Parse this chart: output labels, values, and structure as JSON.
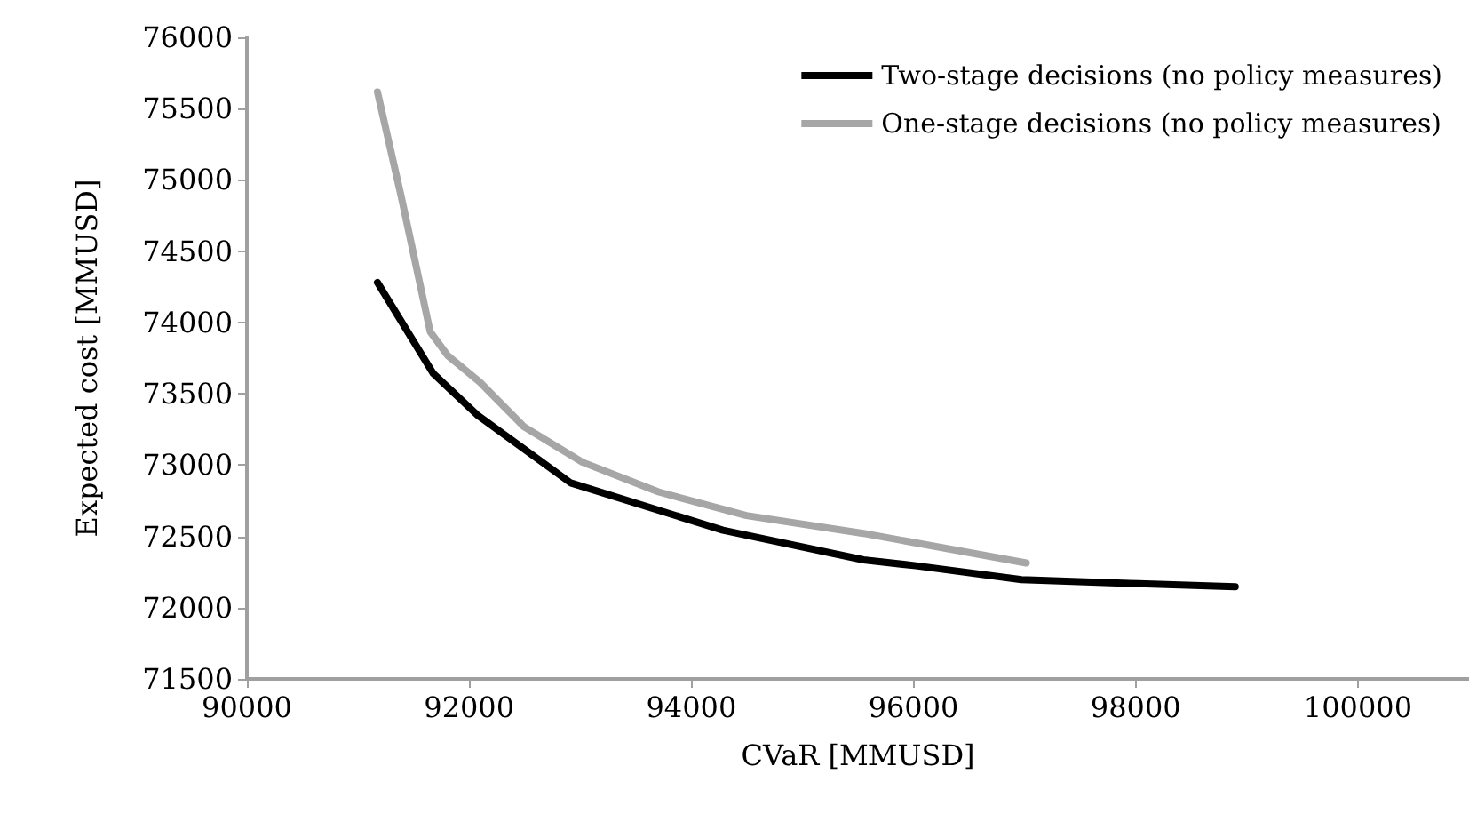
{
  "chart_data": {
    "type": "line",
    "xlabel": "CVaR [MMUSD]",
    "ylabel": "Expected cost [MMUSD]",
    "xlim": [
      90000,
      101000
    ],
    "xticks": [
      90000,
      92000,
      94000,
      96000,
      98000,
      100000
    ],
    "ylim": [
      71500,
      76000
    ],
    "yticks": [
      71500,
      72000,
      72500,
      73000,
      73500,
      74000,
      74500,
      75000,
      75500,
      76000
    ],
    "grid": false,
    "legend": "top right",
    "marker": "none",
    "line_style": "solid",
    "series": [
      {
        "name": "Two-stage decisions (no policy measures)",
        "color": "#000000",
        "x": [
          91175,
          91676,
          92071,
          92914,
          94285,
          95550,
          96024,
          96972,
          98027,
          98896
        ],
        "values": [
          74280,
          73643,
          73353,
          72875,
          72543,
          72335,
          72294,
          72197,
          72168,
          72147
        ]
      },
      {
        "name": "One-stage decisions (no policy measures)",
        "color": "#a6a6a6",
        "x": [
          91175,
          91387,
          91650,
          91807,
          92098,
          92493,
          93020,
          93705,
          94496,
          95549,
          97015
        ],
        "values": [
          75617,
          74890,
          73934,
          73768,
          73581,
          73269,
          73020,
          72812,
          72646,
          72521,
          72313
        ]
      }
    ]
  }
}
